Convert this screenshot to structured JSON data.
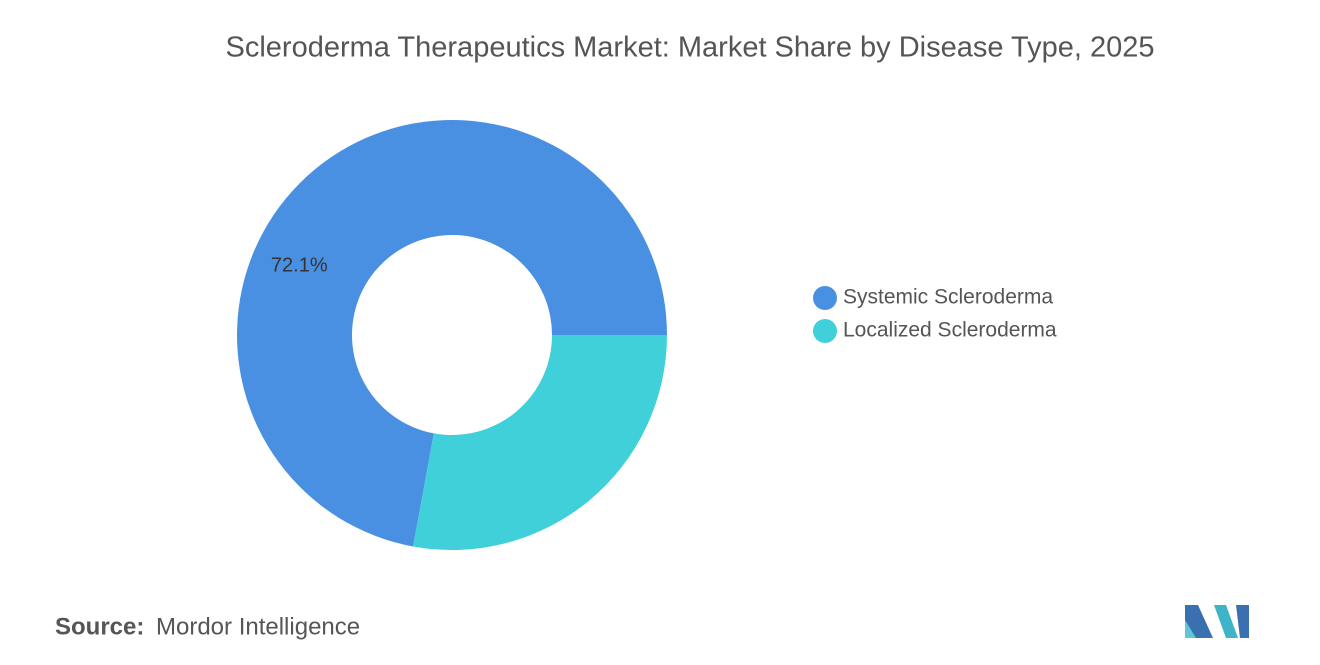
{
  "chart_data": {
    "type": "donut",
    "title": "Scleroderma Therapeutics Market: Market Share by Disease Type, 2025",
    "categories": [
      "Systemic Scleroderma",
      "Localized Scleroderma"
    ],
    "values": [
      72.1,
      27.9
    ],
    "value_labels": [
      "72.1%",
      null
    ],
    "colors": [
      "#4a90e2",
      "#3fd0d9"
    ],
    "source_label": "Source:",
    "source": "Mordor Intelligence"
  }
}
